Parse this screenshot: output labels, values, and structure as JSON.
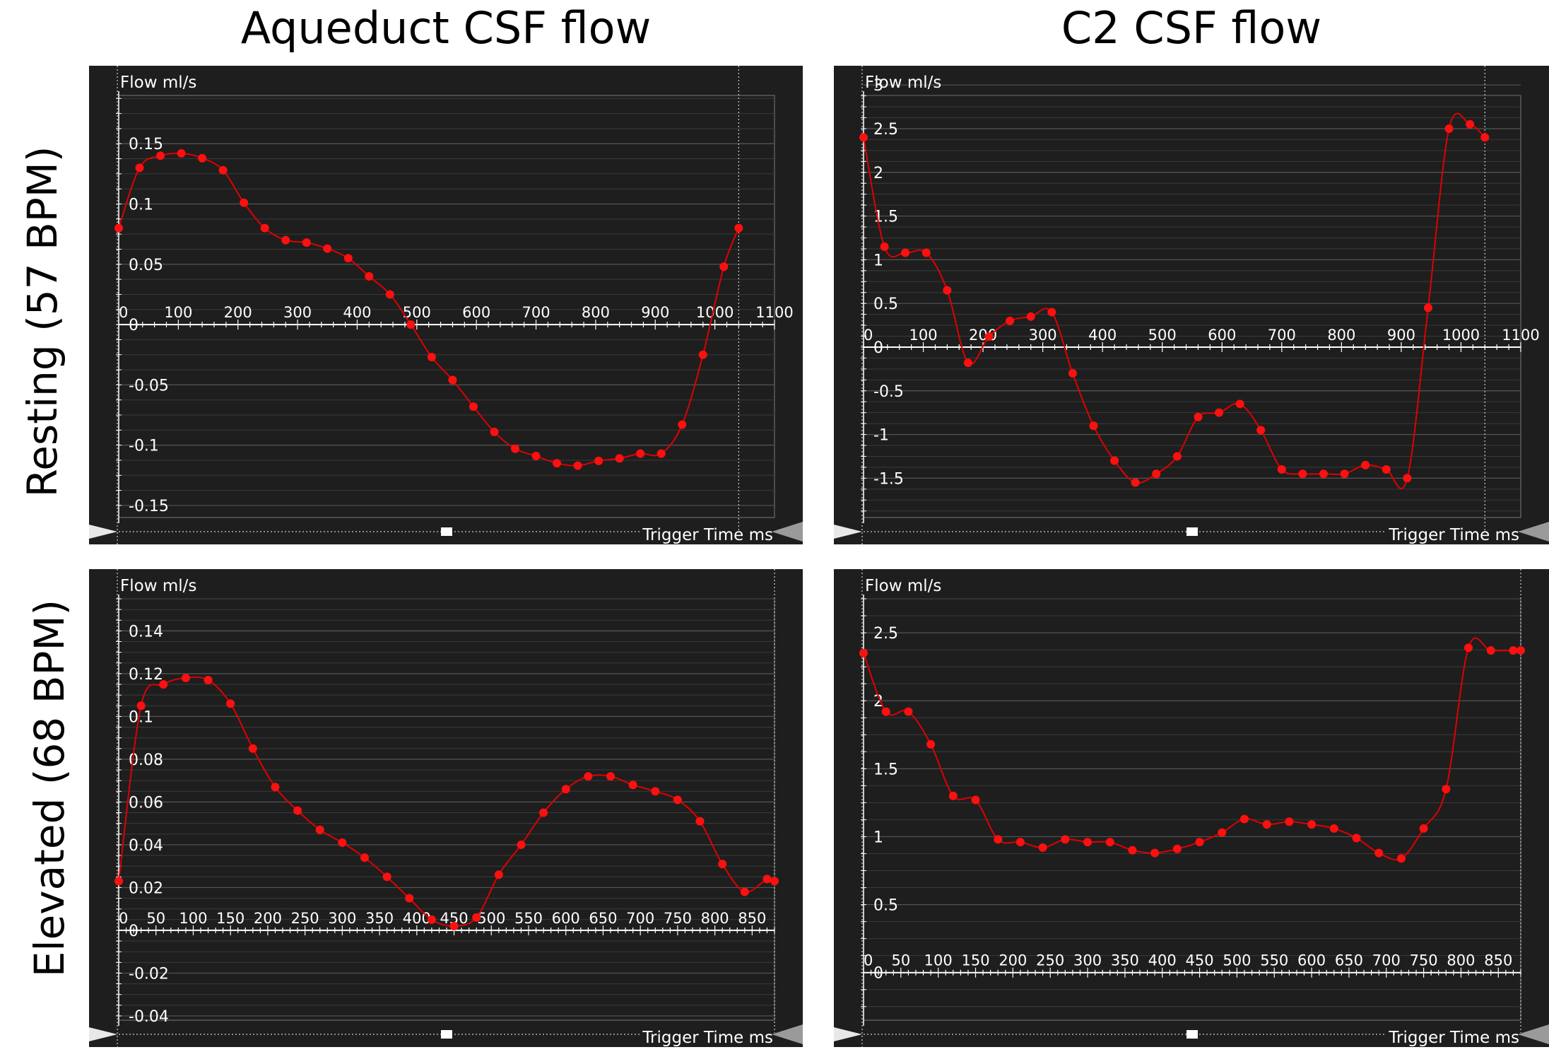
{
  "column_titles": [
    "Aqueduct CSF flow",
    "C2 CSF flow"
  ],
  "row_labels": [
    "Resting (57 BPM)",
    "Elevated (68 BPM)"
  ],
  "colors": {
    "panel_bg": "#1e1e1e",
    "grid": "#4a4a4a",
    "axis": "#ffffff",
    "series": "#e00000",
    "text": "#ffffff"
  },
  "chart_data": [
    {
      "type": "line",
      "panel": "Aqueduct CSF flow / Resting (57 BPM)",
      "ylabel": "Flow ml/s",
      "xlabel": "Trigger Time ms",
      "xlim": [
        0,
        1100
      ],
      "ylim": [
        -0.16,
        0.19
      ],
      "yticks": [
        -0.15,
        -0.1,
        -0.05,
        0,
        0.05,
        0.1,
        0.15
      ],
      "ytick_labels": [
        "-0.15",
        "-0.1",
        "-0.05",
        "0",
        "0.05",
        "0.1",
        "0.15"
      ],
      "xticks": [
        0,
        100,
        200,
        300,
        400,
        500,
        600,
        700,
        800,
        900,
        1000,
        1100
      ],
      "xtick_labels": [
        "0",
        "100",
        "200",
        "300",
        "400",
        "500",
        "600",
        "700",
        "800",
        "900",
        "1000",
        "1100"
      ],
      "cursor_x": 1040,
      "x": [
        0,
        35,
        70,
        105,
        140,
        175,
        210,
        245,
        280,
        315,
        350,
        385,
        420,
        455,
        490,
        525,
        560,
        595,
        630,
        665,
        700,
        735,
        770,
        805,
        840,
        875,
        910,
        945,
        980,
        1015,
        1040
      ],
      "y": [
        0.08,
        0.13,
        0.14,
        0.142,
        0.138,
        0.128,
        0.101,
        0.08,
        0.07,
        0.068,
        0.063,
        0.055,
        0.04,
        0.025,
        0.0,
        -0.027,
        -0.046,
        -0.068,
        -0.089,
        -0.103,
        -0.109,
        -0.115,
        -0.117,
        -0.113,
        -0.111,
        -0.107,
        -0.107,
        -0.083,
        -0.025,
        0.048,
        0.08
      ]
    },
    {
      "type": "line",
      "panel": "C2 CSF flow / Resting (57 BPM)",
      "ylabel": "Flow ml/s",
      "xlabel": "Trigger Time ms",
      "xlim": [
        0,
        1100
      ],
      "ylim": [
        -1.95,
        2.88
      ],
      "yticks": [
        -1.5,
        -1,
        -0.5,
        0,
        0.5,
        1,
        1.5,
        2,
        2.5,
        3
      ],
      "ytick_labels": [
        "-1.5",
        "-1",
        "-0.5",
        "0",
        "0.5",
        "1",
        "1.5",
        "2",
        "2.5",
        "3"
      ],
      "xticks": [
        0,
        100,
        200,
        300,
        400,
        500,
        600,
        700,
        800,
        900,
        1000,
        1100
      ],
      "xtick_labels": [
        "0",
        "100",
        "200",
        "300",
        "400",
        "500",
        "600",
        "700",
        "800",
        "900",
        "1000",
        "1100"
      ],
      "cursor_x": 1040,
      "x": [
        0,
        35,
        70,
        105,
        140,
        175,
        210,
        245,
        280,
        315,
        350,
        385,
        420,
        455,
        490,
        525,
        560,
        595,
        630,
        665,
        700,
        735,
        770,
        805,
        840,
        875,
        910,
        945,
        980,
        1015,
        1040
      ],
      "y": [
        2.4,
        1.15,
        1.08,
        1.08,
        0.65,
        -0.18,
        0.12,
        0.3,
        0.35,
        0.4,
        -0.3,
        -0.9,
        -1.3,
        -1.55,
        -1.45,
        -1.25,
        -0.8,
        -0.75,
        -0.65,
        -0.95,
        -1.4,
        -1.45,
        -1.45,
        -1.45,
        -1.35,
        -1.4,
        -1.5,
        0.45,
        2.5,
        2.55,
        2.4
      ]
    },
    {
      "type": "line",
      "panel": "Aqueduct CSF flow / Elevated (68 BPM)",
      "ylabel": "Flow ml/s",
      "xlabel": "Trigger Time ms",
      "xlim": [
        0,
        880
      ],
      "ylim": [
        -0.042,
        0.155
      ],
      "yticks": [
        -0.04,
        -0.02,
        0,
        0.02,
        0.04,
        0.06,
        0.08,
        0.1,
        0.12,
        0.14
      ],
      "ytick_labels": [
        "-0.04",
        "-0.02",
        "0",
        "0.02",
        "0.04",
        "0.06",
        "0.08",
        "0.1",
        "0.12",
        "0.14"
      ],
      "xticks": [
        0,
        50,
        100,
        150,
        200,
        250,
        300,
        350,
        400,
        450,
        500,
        550,
        600,
        650,
        700,
        750,
        800,
        850
      ],
      "xtick_labels": [
        "0",
        "50",
        "100",
        "150",
        "200",
        "250",
        "300",
        "350",
        "400",
        "450",
        "500",
        "550",
        "600",
        "650",
        "700",
        "750",
        "800",
        "850"
      ],
      "cursor_x": 880,
      "x": [
        0,
        30,
        60,
        90,
        120,
        150,
        180,
        210,
        240,
        270,
        300,
        330,
        360,
        390,
        420,
        450,
        480,
        510,
        540,
        570,
        600,
        630,
        660,
        690,
        720,
        750,
        780,
        810,
        840,
        870,
        880
      ],
      "y": [
        0.023,
        0.105,
        0.115,
        0.118,
        0.117,
        0.106,
        0.085,
        0.067,
        0.056,
        0.047,
        0.041,
        0.034,
        0.025,
        0.015,
        0.005,
        0.002,
        0.006,
        0.026,
        0.04,
        0.055,
        0.066,
        0.072,
        0.072,
        0.068,
        0.065,
        0.061,
        0.051,
        0.031,
        0.018,
        0.024,
        0.023
      ]
    },
    {
      "type": "line",
      "panel": "C2 CSF flow / Elevated (68 BPM)",
      "ylabel": "Flow ml/s",
      "xlabel": "Trigger Time ms",
      "xlim": [
        0,
        880
      ],
      "ylim": [
        -0.35,
        2.75
      ],
      "yticks": [
        0,
        0.5,
        1,
        1.5,
        2,
        2.5
      ],
      "ytick_labels": [
        "0",
        "0.5",
        "1",
        "1.5",
        "2",
        "2.5"
      ],
      "xticks": [
        0,
        50,
        100,
        150,
        200,
        250,
        300,
        350,
        400,
        450,
        500,
        550,
        600,
        650,
        700,
        750,
        800,
        850
      ],
      "xtick_labels": [
        "0",
        "50",
        "100",
        "150",
        "200",
        "250",
        "300",
        "350",
        "400",
        "450",
        "500",
        "550",
        "600",
        "650",
        "700",
        "750",
        "800",
        "850"
      ],
      "cursor_x": 880,
      "x": [
        0,
        30,
        60,
        90,
        120,
        150,
        180,
        210,
        240,
        270,
        300,
        330,
        360,
        390,
        420,
        450,
        480,
        510,
        540,
        570,
        600,
        630,
        660,
        690,
        720,
        750,
        780,
        810,
        840,
        870,
        880
      ],
      "y": [
        2.35,
        1.92,
        1.92,
        1.68,
        1.3,
        1.27,
        0.98,
        0.96,
        0.92,
        0.98,
        0.96,
        0.96,
        0.9,
        0.88,
        0.91,
        0.96,
        1.03,
        1.13,
        1.09,
        1.11,
        1.09,
        1.06,
        0.99,
        0.88,
        0.84,
        1.06,
        1.35,
        2.39,
        2.37,
        2.37,
        2.37
      ]
    }
  ]
}
